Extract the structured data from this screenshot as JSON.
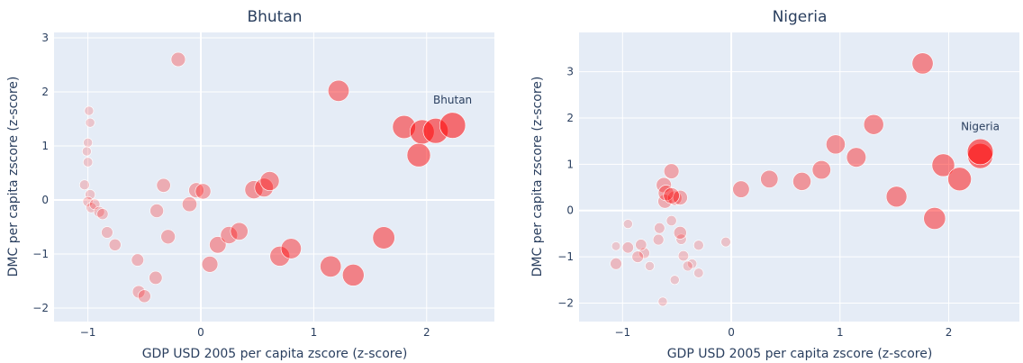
{
  "chart_data": [
    {
      "type": "scatter",
      "title": "Bhutan",
      "xlabel": "GDP USD 2005 per capita zscore (z-score)",
      "ylabel": "DMC per capita zscore (z-score)",
      "xlim": [
        -1.3,
        2.6
      ],
      "ylim": [
        -2.25,
        3.1
      ],
      "xticks": [
        -1,
        0,
        1,
        2
      ],
      "yticks": [
        -2,
        -1,
        0,
        1,
        2,
        3
      ],
      "tick_labels_x": [
        "−1",
        "0",
        "1",
        "2"
      ],
      "tick_labels_y": [
        "−2",
        "−1",
        "0",
        "1",
        "2",
        "3"
      ],
      "annotation": {
        "text": "Bhutan",
        "x": 2.23,
        "y": 1.38
      },
      "color": "#ff0000",
      "points": [
        [
          -0.99,
          1.65,
          0.1
        ],
        [
          -0.98,
          1.43,
          0.1
        ],
        [
          -1.0,
          1.06,
          0.1
        ],
        [
          -1.01,
          0.9,
          0.1
        ],
        [
          -1.0,
          0.7,
          0.12
        ],
        [
          -1.03,
          0.28,
          0.14
        ],
        [
          -0.98,
          0.1,
          0.14
        ],
        [
          -1.0,
          -0.03,
          0.15
        ],
        [
          -0.97,
          -0.14,
          0.16
        ],
        [
          -0.94,
          -0.08,
          0.17
        ],
        [
          -0.9,
          -0.22,
          0.18
        ],
        [
          -0.87,
          -0.26,
          0.2
        ],
        [
          -0.83,
          -0.6,
          0.22
        ],
        [
          -0.76,
          -0.83,
          0.24
        ],
        [
          -0.56,
          -1.11,
          0.26
        ],
        [
          -0.55,
          -1.7,
          0.27
        ],
        [
          -0.5,
          -1.78,
          0.28
        ],
        [
          -0.4,
          -1.44,
          0.3
        ],
        [
          -0.39,
          -0.2,
          0.32
        ],
        [
          -0.33,
          0.27,
          0.34
        ],
        [
          -0.29,
          -0.68,
          0.36
        ],
        [
          -0.2,
          2.6,
          0.36
        ],
        [
          -0.1,
          -0.08,
          0.38
        ],
        [
          -0.04,
          0.18,
          0.4
        ],
        [
          0.02,
          0.16,
          0.42
        ],
        [
          0.08,
          -1.19,
          0.45
        ],
        [
          0.15,
          -0.83,
          0.48
        ],
        [
          0.25,
          -0.65,
          0.5
        ],
        [
          0.34,
          -0.58,
          0.52
        ],
        [
          0.47,
          0.19,
          0.55
        ],
        [
          0.56,
          0.23,
          0.58
        ],
        [
          0.61,
          0.35,
          0.6
        ],
        [
          0.7,
          -1.04,
          0.64
        ],
        [
          0.8,
          -0.9,
          0.66
        ],
        [
          1.15,
          -1.23,
          0.7
        ],
        [
          1.22,
          2.02,
          0.7
        ],
        [
          1.35,
          -1.39,
          0.73
        ],
        [
          1.62,
          -0.7,
          0.75
        ],
        [
          1.8,
          1.35,
          0.8
        ],
        [
          1.93,
          0.83,
          0.82
        ],
        [
          1.96,
          1.26,
          0.86
        ],
        [
          2.08,
          1.28,
          0.9
        ],
        [
          2.23,
          1.38,
          0.94
        ]
      ]
    },
    {
      "type": "scatter",
      "title": "Nigeria",
      "xlabel": "GDP USD 2005 per capita zscore (z-score)",
      "ylabel": "DMC per capita zscore (z-score)",
      "xlim": [
        -1.4,
        2.65
      ],
      "ylim": [
        -2.4,
        3.85
      ],
      "xticks": [
        -1,
        0,
        1,
        2
      ],
      "yticks": [
        -2,
        -1,
        0,
        1,
        2,
        3
      ],
      "tick_labels_x": [
        "−1",
        "0",
        "1",
        "2"
      ],
      "tick_labels_y": [
        "−2",
        "−1",
        "0",
        "1",
        "2",
        "3"
      ],
      "annotation": {
        "text": "Nigeria",
        "x": 2.29,
        "y": 1.27
      },
      "color": "#ff0000",
      "points": [
        [
          -1.06,
          -0.77,
          0.08
        ],
        [
          -0.95,
          -0.29,
          0.1
        ],
        [
          -0.75,
          -1.2,
          0.1
        ],
        [
          -0.63,
          -1.97,
          0.1
        ],
        [
          -0.52,
          -1.5,
          0.1
        ],
        [
          -0.36,
          -1.15,
          0.12
        ],
        [
          -0.3,
          -1.35,
          0.12
        ],
        [
          -0.05,
          -0.68,
          0.13
        ],
        [
          -0.3,
          -0.75,
          0.14
        ],
        [
          -0.4,
          -1.2,
          0.14
        ],
        [
          -0.55,
          -0.22,
          0.15
        ],
        [
          -0.46,
          -0.62,
          0.16
        ],
        [
          -0.44,
          -0.98,
          0.16
        ],
        [
          -0.66,
          -0.38,
          0.17
        ],
        [
          -0.67,
          -0.63,
          0.18
        ],
        [
          -0.8,
          -0.92,
          0.18
        ],
        [
          -0.83,
          -0.74,
          0.2
        ],
        [
          -0.95,
          -0.8,
          0.2
        ],
        [
          -0.86,
          -1.0,
          0.22
        ],
        [
          -1.06,
          -1.15,
          0.22
        ],
        [
          -0.47,
          -0.48,
          0.28
        ],
        [
          -0.61,
          0.2,
          0.34
        ],
        [
          -0.52,
          0.27,
          0.36
        ],
        [
          -0.47,
          0.28,
          0.38
        ],
        [
          -0.62,
          0.55,
          0.4
        ],
        [
          -0.55,
          0.85,
          0.4
        ],
        [
          -0.6,
          0.38,
          0.42
        ],
        [
          -0.55,
          0.32,
          0.44
        ],
        [
          0.09,
          0.46,
          0.48
        ],
        [
          0.35,
          0.68,
          0.52
        ],
        [
          0.65,
          0.63,
          0.55
        ],
        [
          0.83,
          0.88,
          0.57
        ],
        [
          0.96,
          1.43,
          0.6
        ],
        [
          1.15,
          1.15,
          0.62
        ],
        [
          1.31,
          1.86,
          0.64
        ],
        [
          1.52,
          0.3,
          0.68
        ],
        [
          1.76,
          3.18,
          0.7
        ],
        [
          1.87,
          -0.17,
          0.74
        ],
        [
          1.95,
          0.98,
          0.78
        ],
        [
          2.1,
          0.68,
          0.82
        ],
        [
          2.29,
          1.18,
          0.9
        ],
        [
          2.29,
          1.27,
          0.94
        ]
      ]
    }
  ]
}
